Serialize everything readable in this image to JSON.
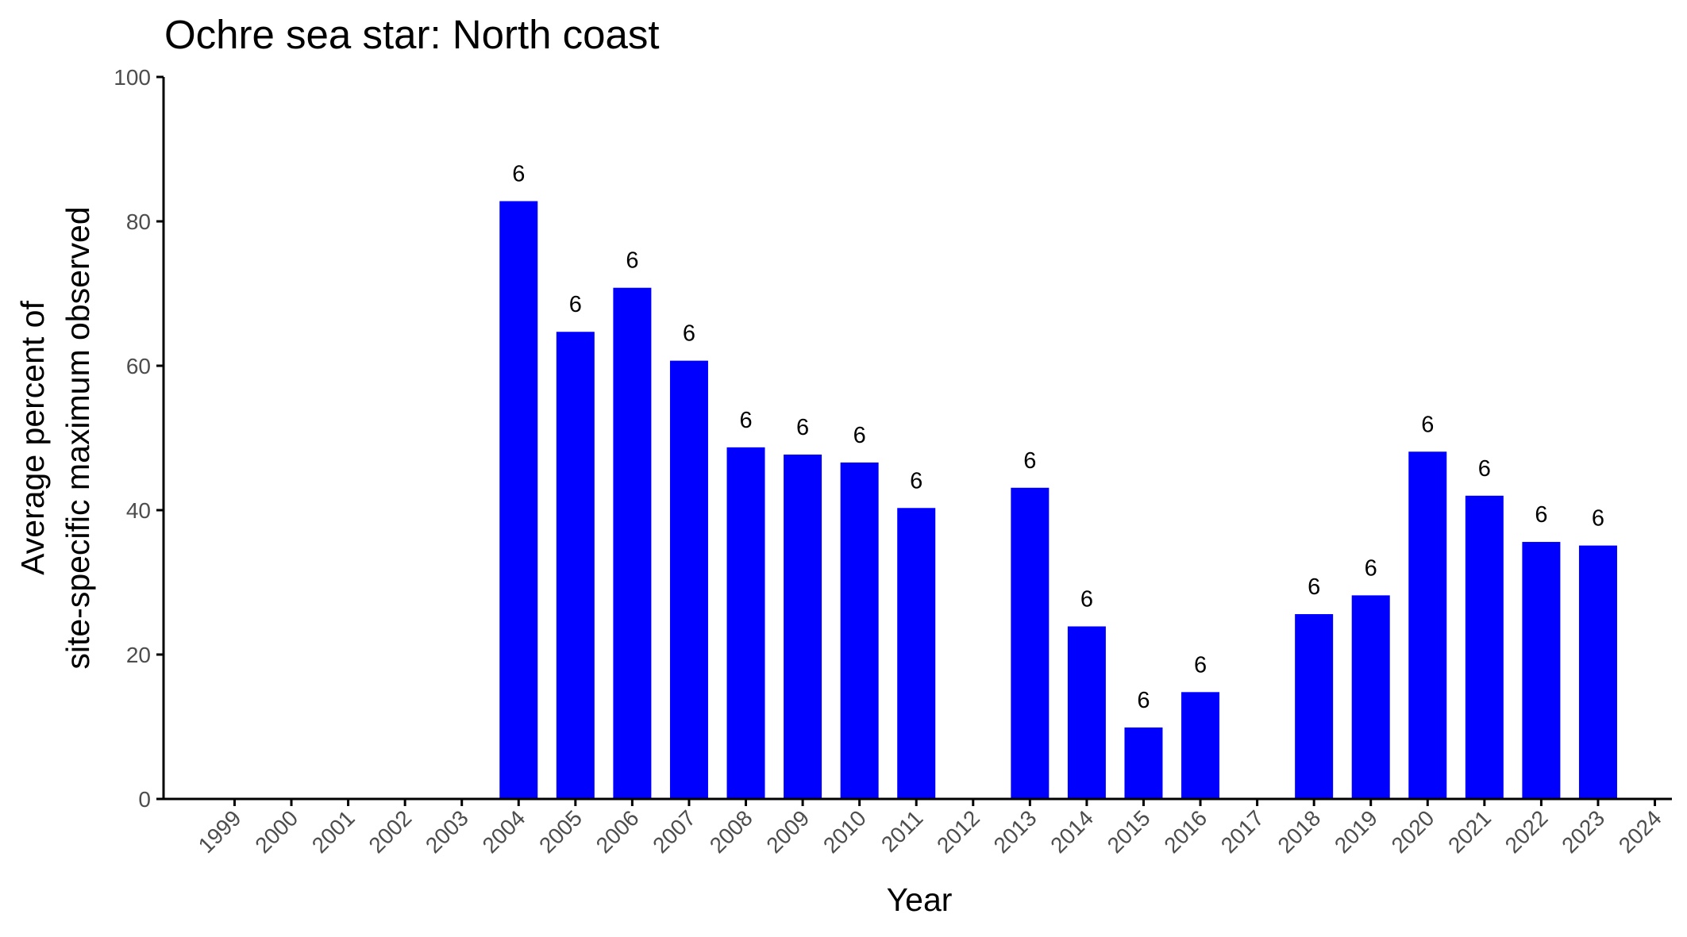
{
  "chart_data": {
    "type": "bar",
    "title": "Ochre sea star: North coast",
    "xlabel": "Year",
    "ylabel_lines": [
      "Average percent of",
      "site-specific maximum observed"
    ],
    "categories": [
      "1999",
      "2000",
      "2001",
      "2002",
      "2003",
      "2004",
      "2005",
      "2006",
      "2007",
      "2008",
      "2009",
      "2010",
      "2011",
      "2012",
      "2013",
      "2014",
      "2015",
      "2016",
      "2017",
      "2018",
      "2019",
      "2020",
      "2021",
      "2022",
      "2023",
      "2024"
    ],
    "values": [
      null,
      null,
      null,
      null,
      null,
      82.8,
      64.7,
      70.8,
      60.7,
      48.7,
      47.7,
      46.6,
      40.3,
      null,
      43.1,
      23.9,
      9.9,
      14.8,
      null,
      25.6,
      28.2,
      48.1,
      42.0,
      35.6,
      35.1,
      null
    ],
    "bar_labels": [
      null,
      null,
      null,
      null,
      null,
      "6",
      "6",
      "6",
      "6",
      "6",
      "6",
      "6",
      "6",
      null,
      "6",
      "6",
      "6",
      "6",
      null,
      "6",
      "6",
      "6",
      "6",
      "6",
      "6",
      null
    ],
    "ylim": [
      0,
      100
    ],
    "yticks": [
      0,
      20,
      40,
      60,
      80,
      100
    ],
    "bar_color": "#0000ff",
    "grid": false,
    "legend": "none"
  }
}
